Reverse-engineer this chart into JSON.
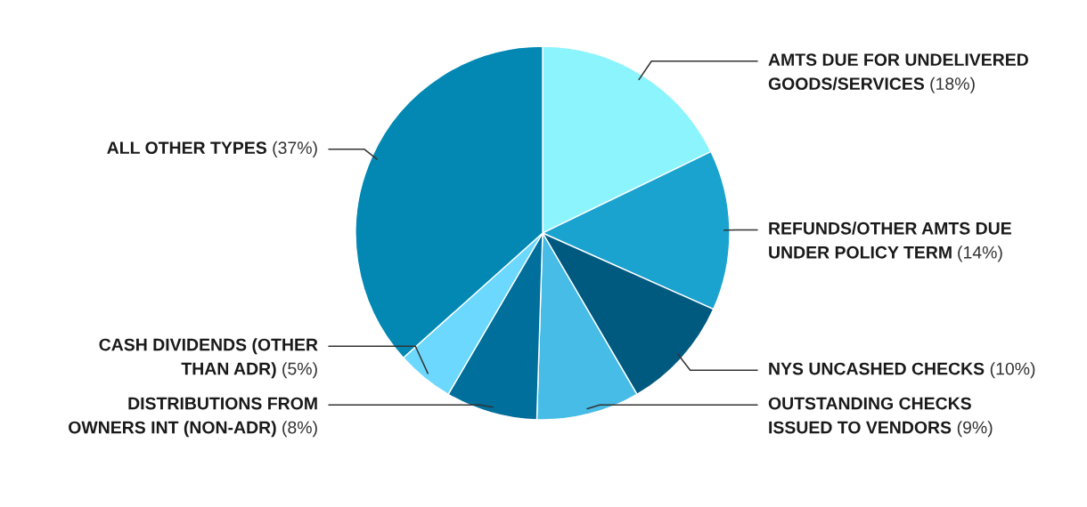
{
  "chart_data": {
    "type": "pie",
    "categories": [
      "AMTS DUE FOR UNDELIVERED\nGOODS/SERVICES",
      "REFUNDS/OTHER AMTS DUE\nUNDER POLICY TERM",
      "NYS UNCASHED CHECKS",
      "OUTSTANDING CHECKS\nISSUED TO VENDORS",
      "DISTRIBUTIONS FROM\nOWNERS INT (NON-ADR)",
      "CASH DIVIDENDS (OTHER\nTHAN ADR)",
      "ALL OTHER TYPES"
    ],
    "values": [
      18,
      14,
      10,
      9,
      8,
      5,
      37
    ],
    "value_labels": [
      "(18%)",
      "(14%)",
      "(10%)",
      "(9%)",
      "(8%)",
      "(5%)",
      "(37%)"
    ],
    "colors": [
      "#8cf4fd",
      "#1ba3d0",
      "#005a80",
      "#47bce6",
      "#006f9c",
      "#6dd8fd",
      "#0288b3"
    ]
  }
}
